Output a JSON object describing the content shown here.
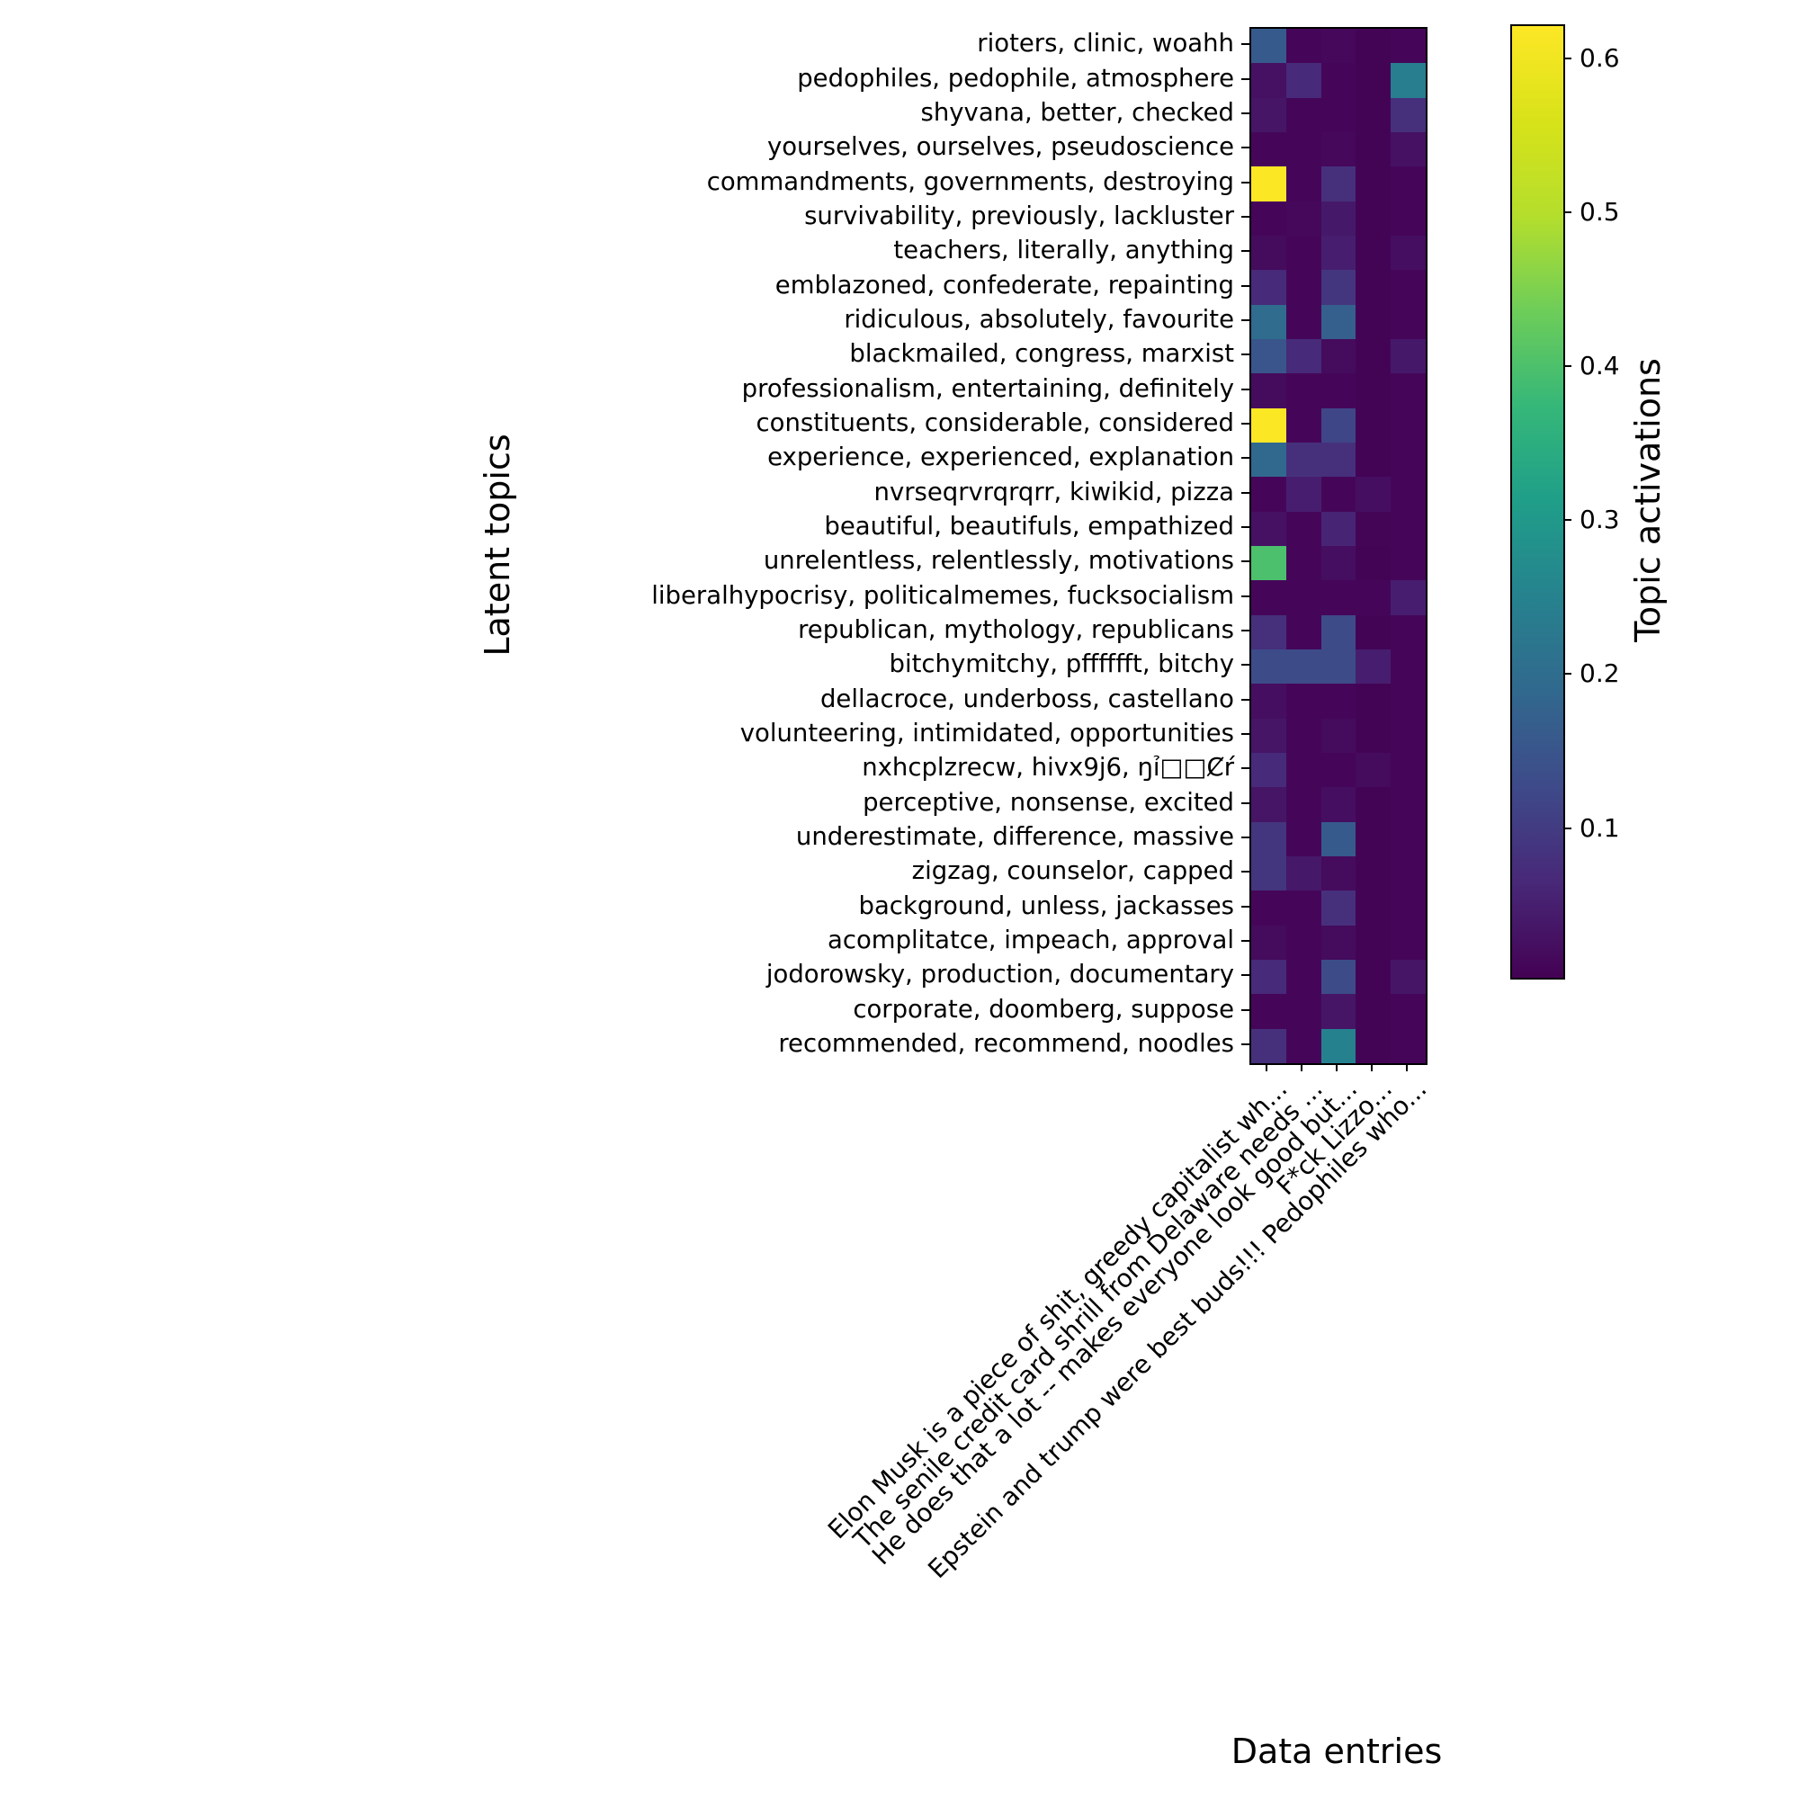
{
  "figure": {
    "ylabel": "Latent topics",
    "xlabel": "Data entries",
    "colorbar_label": "Topic activations"
  },
  "chart_data": {
    "type": "heatmap",
    "title": "",
    "xlabel": "Data entries",
    "ylabel": "Latent topics",
    "colorbar_label": "Topic activations",
    "colormap": "viridis",
    "vmin": 0.004,
    "vmax": 0.622,
    "colorbar_ticks": [
      0.1,
      0.2,
      0.3,
      0.4,
      0.5,
      0.6
    ],
    "columns": [
      "Elon Musk is a piece of shit, greedy capitalist wh...",
      "The senile credit card shrill from Delaware needs ...",
      "He does that a lot -- makes everyone look good but...",
      "F*ck Lizzo...",
      "Epstein and trump were best buds!!! Pedophiles who..."
    ],
    "rows": [
      "rioters, clinic, woahh",
      "pedophiles, pedophile, atmosphere",
      "shyvana, better, checked",
      "yourselves, ourselves, pseudoscience",
      "commandments, governments, destroying",
      "survivability, previously, lackluster",
      "teachers, literally, anything",
      "emblazoned, confederate, repainting",
      "ridiculous, absolutely, favourite",
      "blackmailed, congress, marxist",
      "professionalism, entertaining, definitely",
      "constituents, considerable, considered",
      "experience, experienced, explanation",
      "nvrseqrvrqrqrr, kiwikid, pizza",
      "beautiful, beautifuls, empathized",
      "unrelentless, relentlessly, motivations",
      "liberalhypocrisy, politicalmemes, fucksocialism",
      "republican, mythology, republicans",
      "bitchymitchy, pfffffft, bitchy",
      "dellacroce, underboss, castellano",
      "volunteering, intimidated, opportunities",
      "nxhcplzrecw, hivx9j6, ŋỉ□□Ȼŕ",
      "perceptive, nonsense, excited",
      "underestimate, difference, massive",
      "zigzag, counselor, capped",
      "background, unless, jackasses",
      "acomplitatce, impeach, approval",
      "jodorowsky, production, documentary",
      "corporate, doomberg, suppose",
      "recommended, recommend, noodles"
    ],
    "values": [
      [
        0.16,
        0.012,
        0.015,
        0.008,
        0.012
      ],
      [
        0.03,
        0.07,
        0.012,
        0.008,
        0.24
      ],
      [
        0.035,
        0.012,
        0.012,
        0.008,
        0.08
      ],
      [
        0.012,
        0.012,
        0.015,
        0.008,
        0.03
      ],
      [
        0.62,
        0.012,
        0.08,
        0.008,
        0.012
      ],
      [
        0.012,
        0.015,
        0.04,
        0.008,
        0.012
      ],
      [
        0.02,
        0.012,
        0.05,
        0.008,
        0.025
      ],
      [
        0.07,
        0.012,
        0.09,
        0.008,
        0.012
      ],
      [
        0.2,
        0.012,
        0.17,
        0.008,
        0.012
      ],
      [
        0.15,
        0.07,
        0.02,
        0.008,
        0.04
      ],
      [
        0.02,
        0.012,
        0.012,
        0.008,
        0.012
      ],
      [
        0.62,
        0.012,
        0.12,
        0.008,
        0.012
      ],
      [
        0.19,
        0.08,
        0.08,
        0.008,
        0.012
      ],
      [
        0.012,
        0.05,
        0.012,
        0.025,
        0.012
      ],
      [
        0.03,
        0.012,
        0.06,
        0.01,
        0.012
      ],
      [
        0.4,
        0.012,
        0.025,
        0.008,
        0.012
      ],
      [
        0.012,
        0.012,
        0.012,
        0.012,
        0.05
      ],
      [
        0.08,
        0.012,
        0.13,
        0.008,
        0.012
      ],
      [
        0.13,
        0.13,
        0.13,
        0.05,
        0.012
      ],
      [
        0.025,
        0.012,
        0.012,
        0.008,
        0.012
      ],
      [
        0.035,
        0.012,
        0.02,
        0.008,
        0.012
      ],
      [
        0.07,
        0.012,
        0.012,
        0.02,
        0.012
      ],
      [
        0.035,
        0.012,
        0.025,
        0.008,
        0.012
      ],
      [
        0.09,
        0.012,
        0.16,
        0.008,
        0.012
      ],
      [
        0.09,
        0.04,
        0.02,
        0.008,
        0.012
      ],
      [
        0.012,
        0.012,
        0.08,
        0.008,
        0.012
      ],
      [
        0.02,
        0.012,
        0.02,
        0.008,
        0.012
      ],
      [
        0.07,
        0.012,
        0.13,
        0.008,
        0.035
      ],
      [
        0.012,
        0.012,
        0.035,
        0.008,
        0.012
      ],
      [
        0.08,
        0.012,
        0.25,
        0.008,
        0.012
      ]
    ]
  }
}
